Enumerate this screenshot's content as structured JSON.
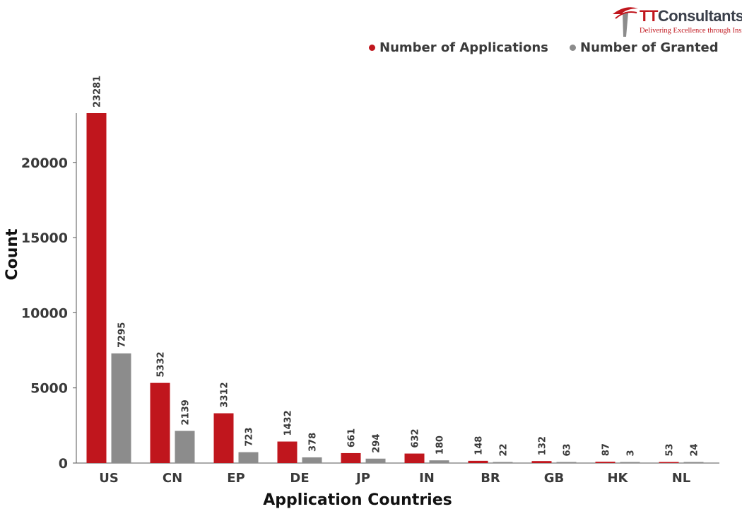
{
  "logo": {
    "brand_prefix": "TT",
    "brand_suffix": "Consultants",
    "tagline": "Delivering Excellence through Insights"
  },
  "colors": {
    "applications": "#c0161d",
    "granted": "#8c8c8c",
    "text": "#3a3a3a"
  },
  "chart_data": {
    "type": "bar",
    "xlabel": "Application Countries",
    "ylabel": "Count",
    "categories": [
      "US",
      "CN",
      "EP",
      "DE",
      "JP",
      "IN",
      "BR",
      "GB",
      "HK",
      "NL"
    ],
    "series": [
      {
        "name": "Number of Applications",
        "values": [
          23281,
          5332,
          3312,
          1432,
          661,
          632,
          148,
          132,
          87,
          53
        ]
      },
      {
        "name": "Number of Granted",
        "values": [
          7295,
          2139,
          723,
          378,
          294,
          180,
          22,
          63,
          3,
          24
        ]
      }
    ],
    "yticks": [
      0,
      5000,
      10000,
      15000,
      20000
    ],
    "ylim": [
      0,
      23281
    ],
    "legend_position": "top-right",
    "grid": false
  }
}
